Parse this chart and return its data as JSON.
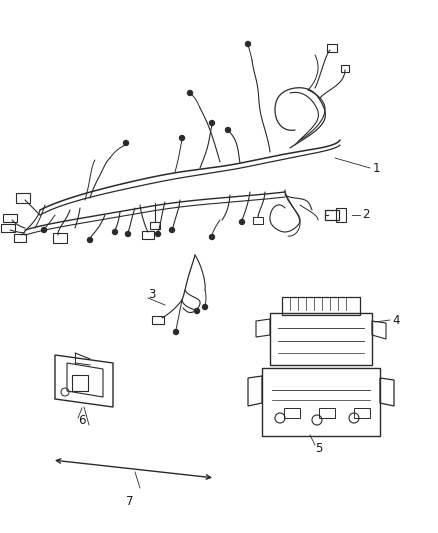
{
  "bg_color": "#ffffff",
  "line_color": "#2a2a2a",
  "label_color": "#1a1a1a",
  "label_fontsize": 8.5,
  "figsize": [
    4.38,
    5.33
  ],
  "dpi": 100
}
